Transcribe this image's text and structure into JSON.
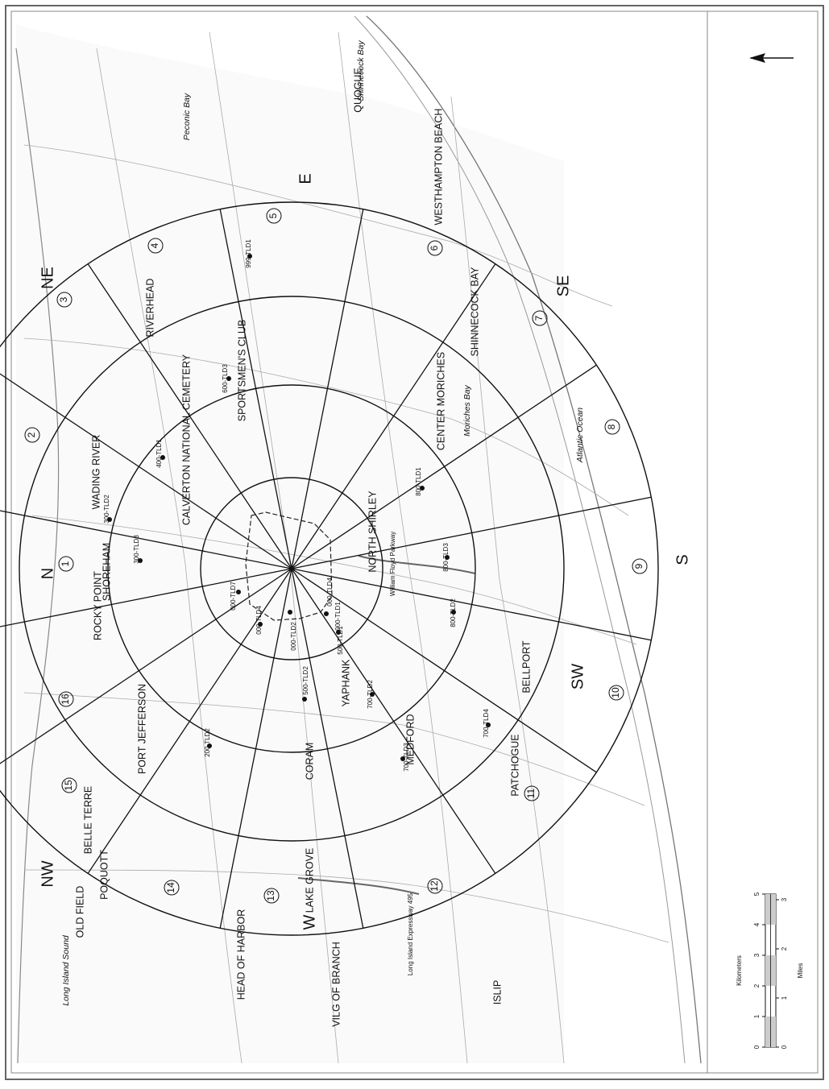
{
  "map": {
    "places": [
      "OLD FIELD",
      "POQUOTT",
      "BELLE TERRE",
      "PORT JEFFERSON",
      "ROCKY POINT",
      "SHOREHAM",
      "WADING RIVER",
      "RIVERHEAD",
      "CALVERTON NATIONAL CEMETERY",
      "SPORTSMEN'S CLUB",
      "NORTH SHIRLEY",
      "CENTER MORICHES",
      "SHINNECOCK BAY",
      "WESTHAMPTON BEACH",
      "QUOGUE",
      "YAPHANK",
      "MEDFORD",
      "CORAM",
      "LAKE GROVE",
      "HEAD OF HARBOR",
      "VILG OF BRANCH",
      "ISLIP",
      "PATCHOGUE",
      "BELLPORT"
    ],
    "waters": [
      "Long Island Sound",
      "Peconic Bay",
      "Shinnecock Bay",
      "Moriches Bay",
      "Atlantic Ocean"
    ],
    "roads": [
      "William Floyd Parkway",
      "Long Island Expressway 495"
    ],
    "directions": [
      "N",
      "NE",
      "E",
      "SE",
      "S",
      "SW",
      "W",
      "NW"
    ],
    "sector_numbers": [
      "1",
      "2",
      "3",
      "4",
      "5",
      "6",
      "7",
      "8",
      "9",
      "10",
      "11",
      "12",
      "13",
      "14",
      "15",
      "16"
    ],
    "stations": [
      "300-TLD2",
      "300-TLD3",
      "400-TLD1",
      "600-TLD3",
      "999-TLD1",
      "800-TLD1",
      "000-TLD7",
      "000-TLD4",
      "000-TLD4",
      "000-TLD1",
      "000-TLD2",
      "500-TLD1",
      "500-TLD2",
      "700-TLD2",
      "700-TLD3",
      "700-TLD4",
      "200-TLD2",
      "800-TLD2",
      "800-TLD3"
    ]
  },
  "scale_bar": {
    "km_label": "Kilometers",
    "km_ticks": [
      "0",
      "1",
      "2",
      "3",
      "4",
      "5"
    ],
    "miles_label": "Miles",
    "mile_ticks": [
      "0",
      "1",
      "2",
      "3"
    ]
  }
}
